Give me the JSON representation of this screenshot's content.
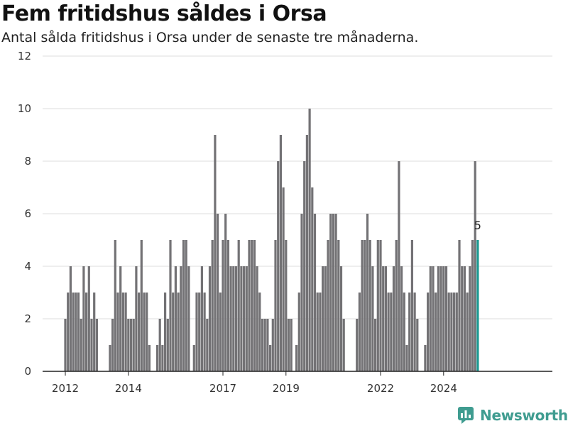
{
  "title": "Fem fritidshus såldes i Orsa",
  "subtitle": "Antal sålda fritidshus i Orsa under de senaste tre månaderna.",
  "brand": "Newsworthy",
  "colors": {
    "bar": "#737275",
    "highlight": "#1a9a92",
    "grid": "#dcdcdc",
    "axis": "#222222",
    "brand": "#3f9c90"
  },
  "chart_data": {
    "type": "bar",
    "xlabel": "",
    "ylabel": "",
    "ylim": [
      0,
      12
    ],
    "yticks": [
      0,
      2,
      4,
      6,
      8,
      10,
      12
    ],
    "xticks": [
      "2012",
      "2014",
      "2017",
      "2019",
      "2022",
      "2024"
    ],
    "grid": true,
    "start": "2012-01",
    "frequency": "monthly",
    "highlight_last": true,
    "last_label": "5",
    "values": [
      2,
      3,
      4,
      3,
      3,
      3,
      2,
      4,
      3,
      4,
      2,
      3,
      2,
      null,
      null,
      null,
      null,
      1,
      2,
      5,
      3,
      4,
      3,
      3,
      2,
      2,
      2,
      4,
      3,
      5,
      3,
      3,
      1,
      null,
      null,
      1,
      2,
      1,
      3,
      2,
      5,
      3,
      4,
      3,
      4,
      5,
      5,
      4,
      null,
      1,
      3,
      3,
      4,
      3,
      2,
      4,
      5,
      9,
      6,
      3,
      5,
      6,
      5,
      4,
      4,
      4,
      5,
      4,
      4,
      4,
      5,
      5,
      5,
      4,
      3,
      2,
      2,
      2,
      1,
      2,
      5,
      8,
      9,
      7,
      5,
      2,
      2,
      null,
      1,
      3,
      6,
      8,
      9,
      10,
      7,
      6,
      3,
      3,
      4,
      4,
      5,
      6,
      6,
      6,
      5,
      4,
      2,
      null,
      null,
      null,
      null,
      2,
      3,
      5,
      5,
      6,
      5,
      4,
      2,
      5,
      5,
      4,
      4,
      3,
      3,
      4,
      5,
      8,
      4,
      3,
      1,
      3,
      5,
      3,
      2,
      null,
      null,
      1,
      3,
      4,
      4,
      3,
      4,
      4,
      4,
      4,
      3,
      3,
      3,
      3,
      5,
      4,
      4,
      3,
      4,
      5,
      8,
      5
    ]
  }
}
